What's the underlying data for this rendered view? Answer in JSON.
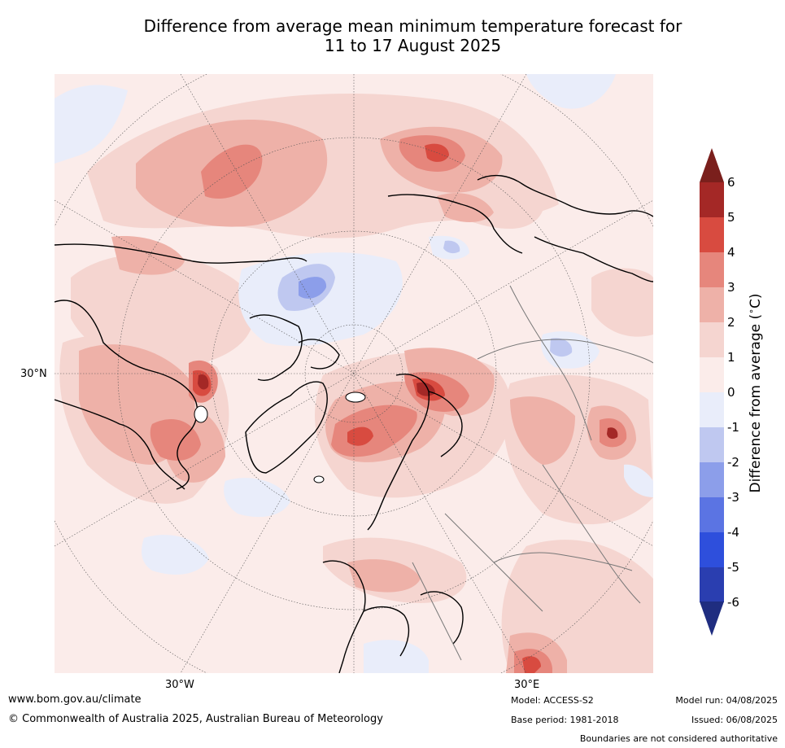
{
  "title": {
    "line1": "Difference from average mean minimum temperature forecast for",
    "line2": "11 to 17 August 2025"
  },
  "map": {
    "projection": "north polar stereographic",
    "lat_labels": [
      "30°N"
    ],
    "lon_labels": [
      "30°W",
      "30°E"
    ]
  },
  "colorbar": {
    "label": "Difference from average (°C)",
    "label_prefix": "Difference from average (",
    "label_unit": "C)",
    "levels": [
      "6",
      "5",
      "4",
      "3",
      "2",
      "1",
      "0",
      "-1",
      "-2",
      "-3",
      "-4",
      "-5",
      "-6"
    ],
    "colors_top_to_bottom": [
      "#a42826",
      "#d84b40",
      "#e6867c",
      "#eeb1a8",
      "#f5d5d0",
      "#fbecea",
      "#e9edfa",
      "#bfc8f0",
      "#8c9eea",
      "#5b74e3",
      "#2e4fdc",
      "#2a3eb0"
    ],
    "extend_over_color": "#7a1f1c",
    "extend_under_color": "#1f2d80"
  },
  "footer": {
    "website": "www.bom.gov.au/climate",
    "copyright": "© Commonwealth of Australia 2025, Australian Bureau of Meteorology",
    "model": "Model: ACCESS-S2",
    "base_period": "Base period: 1981-2018",
    "model_run": "Model run: 04/08/2025",
    "issued": "Issued: 06/08/2025",
    "disclaimer": "Boundaries are not considered authoritative"
  }
}
